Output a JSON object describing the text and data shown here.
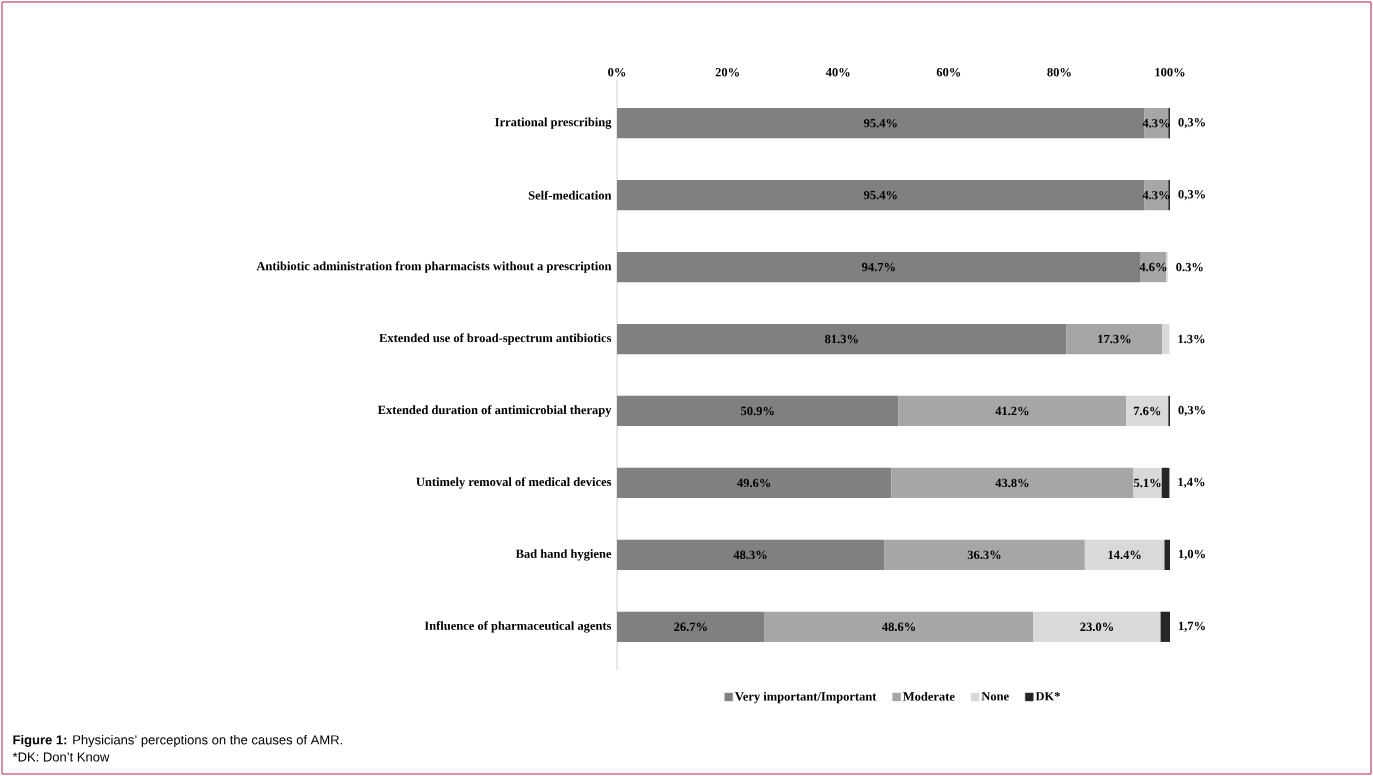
{
  "chart_data": {
    "type": "bar",
    "orientation": "horizontal",
    "stacked": true,
    "categories": [
      "Irrational prescribing",
      "Self-medication",
      "Antibiotic administration from pharmacists without a prescription",
      "Extended use of broad-spectrum antibiotics",
      "Extended duration of antimicrobial therapy",
      "Untimely removal of medical devices",
      "Bad hand hygiene",
      "Influence of pharmaceutical agents"
    ],
    "series": [
      {
        "name": "Very important/Important",
        "color": "#808080",
        "values": [
          95.4,
          95.4,
          94.7,
          81.3,
          50.9,
          49.6,
          48.3,
          26.7
        ],
        "value_labels": [
          "95.4%",
          "95.4%",
          "94.7%",
          "81.3%",
          "50.9%",
          "49.6%",
          "48.3%",
          "26.7%"
        ]
      },
      {
        "name": "Moderate",
        "color": "#a6a6a6",
        "values": [
          4.3,
          4.3,
          4.6,
          17.3,
          41.2,
          43.8,
          36.3,
          48.6
        ],
        "value_labels": [
          "4.3%",
          "4.3%",
          "4.6%",
          "17.3%",
          "41.2%",
          "43.8%",
          "36.3%",
          "48.6%"
        ]
      },
      {
        "name": "None",
        "color": "#d9d9d9",
        "values": [
          null,
          null,
          0.3,
          1.3,
          7.6,
          5.1,
          14.4,
          23.0
        ],
        "value_labels": [
          null,
          null,
          "0.3%",
          "1.3%",
          "7.6%",
          "5.1%",
          "14.4%",
          "23.0%"
        ]
      },
      {
        "name": "DK*",
        "color": "#262626",
        "values": [
          0.3,
          0.3,
          null,
          null,
          0.3,
          1.4,
          1.0,
          1.7
        ],
        "value_labels": [
          "0,3%",
          "0,3%",
          null,
          null,
          "0,3%",
          "1,4%",
          "1,0%",
          "1,7%"
        ]
      }
    ],
    "xlim": [
      0,
      100
    ],
    "xticks": [
      {
        "value": 0,
        "label": "0%"
      },
      {
        "value": 20,
        "label": "20%"
      },
      {
        "value": 40,
        "label": "40%"
      },
      {
        "value": 60,
        "label": "60%"
      },
      {
        "value": 80,
        "label": "80%"
      },
      {
        "value": 100,
        "label": "100%"
      }
    ],
    "legend": "bottom",
    "annotations": [
      "**Figure 1:** Physicians’ perceptions on the causes of AMR.",
      "*DK: Don’t Know"
    ]
  }
}
